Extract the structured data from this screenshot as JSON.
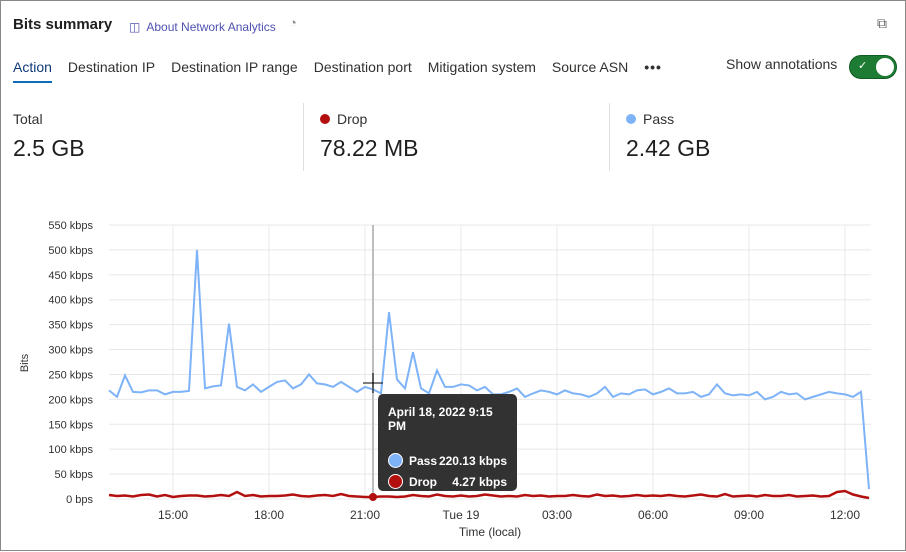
{
  "header": {
    "title": "Bits summary",
    "about_link": "About Network Analytics"
  },
  "tabs": [
    "Action",
    "Destination IP",
    "Destination IP range",
    "Destination port",
    "Mitigation system",
    "Source ASN"
  ],
  "more_label": "•••",
  "annotations": {
    "label": "Show annotations",
    "on": true
  },
  "stats": [
    {
      "label": "Total",
      "value": "2.5 GB"
    },
    {
      "label": "Drop",
      "value": "78.22 MB",
      "color": "#b30f0f"
    },
    {
      "label": "Pass",
      "value": "2.42 GB",
      "color": "#7eb3f8"
    }
  ],
  "tooltip": {
    "date": "April 18, 2022 9:15 PM",
    "rows": [
      {
        "name": "Pass",
        "value": "220.13 kbps",
        "color": "#7eb3f8"
      },
      {
        "name": "Drop",
        "value": "4.27 kbps",
        "color": "#b30f0f"
      }
    ]
  },
  "chart_data": {
    "type": "line",
    "xlabel": "Time (local)",
    "ylabel": "Bits",
    "ylim": [
      0,
      550
    ],
    "grid": true,
    "y_ticks": [
      "0 bps",
      "50 kbps",
      "100 kbps",
      "150 kbps",
      "200 kbps",
      "250 kbps",
      "300 kbps",
      "350 kbps",
      "400 kbps",
      "450 kbps",
      "500 kbps",
      "550 kbps"
    ],
    "x_ticks": [
      {
        "label": "15:00",
        "index": 8
      },
      {
        "label": "18:00",
        "index": 20
      },
      {
        "label": "21:00",
        "index": 32
      },
      {
        "label": "Tue 19",
        "index": 44
      },
      {
        "label": "03:00",
        "index": 56
      },
      {
        "label": "06:00",
        "index": 68
      },
      {
        "label": "09:00",
        "index": 80
      },
      {
        "label": "12:00",
        "index": 92
      }
    ],
    "series": [
      {
        "name": "Pass",
        "color": "#7eb3f8",
        "values": [
          218,
          205,
          248,
          215,
          214,
          218,
          218,
          210,
          215,
          215,
          217,
          500,
          222,
          226,
          228,
          352,
          225,
          218,
          230,
          215,
          225,
          235,
          238,
          222,
          230,
          250,
          232,
          230,
          225,
          235,
          225,
          215,
          225,
          220,
          212,
          375,
          240,
          222,
          295,
          222,
          212,
          258,
          225,
          225,
          230,
          228,
          218,
          225,
          210,
          210,
          215,
          222,
          205,
          212,
          218,
          215,
          210,
          218,
          212,
          210,
          205,
          212,
          225,
          205,
          212,
          210,
          218,
          220,
          210,
          215,
          222,
          212,
          212,
          215,
          205,
          210,
          230,
          212,
          208,
          210,
          208,
          215,
          200,
          205,
          215,
          210,
          212,
          200,
          205,
          210,
          215,
          212,
          210,
          205,
          215,
          20
        ]
      },
      {
        "name": "Drop",
        "color": "#b30f0f",
        "values": [
          8,
          6,
          7,
          5,
          8,
          9,
          5,
          8,
          4,
          6,
          7,
          7,
          5,
          6,
          8,
          6,
          14,
          6,
          8,
          5,
          6,
          6,
          7,
          9,
          6,
          5,
          7,
          8,
          6,
          10,
          6,
          5,
          4,
          4,
          5,
          5,
          4,
          5,
          8,
          6,
          5,
          9,
          6,
          5,
          7,
          5,
          6,
          9,
          7,
          5,
          6,
          5,
          8,
          6,
          7,
          5,
          6,
          6,
          8,
          6,
          5,
          9,
          6,
          7,
          5,
          6,
          8,
          6,
          7,
          6,
          8,
          6,
          5,
          7,
          9,
          6,
          5,
          10,
          5,
          6,
          7,
          5,
          8,
          6,
          6,
          8,
          5,
          6,
          7,
          5,
          6,
          14,
          16,
          9,
          5,
          2
        ]
      }
    ]
  }
}
